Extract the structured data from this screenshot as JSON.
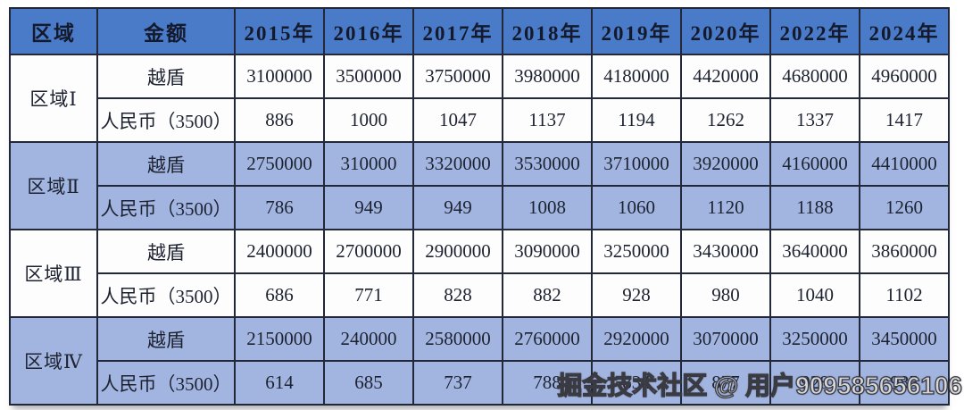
{
  "chart_data": {
    "type": "table",
    "columns": [
      "区域",
      "金额",
      "2015年",
      "2016年",
      "2017年",
      "2018年",
      "2019年",
      "2020年",
      "2022年",
      "2024年"
    ],
    "row_labels": {
      "dong": "越盾",
      "rmb": "人民币（3500）"
    },
    "regions": [
      {
        "name": "区域Ⅰ",
        "rows": [
          {
            "label": "越盾",
            "values": [
              "3100000",
              "3500000",
              "3750000",
              "3980000",
              "4180000",
              "4420000",
              "4680000",
              "4960000"
            ]
          },
          {
            "label": "人民币（3500）",
            "values": [
              "886",
              "1000",
              "1047",
              "1137",
              "1194",
              "1262",
              "1337",
              "1417"
            ]
          }
        ]
      },
      {
        "name": "区域Ⅱ",
        "rows": [
          {
            "label": "越盾",
            "values": [
              "2750000",
              "310000",
              "3320000",
              "3530000",
              "3710000",
              "3920000",
              "4160000",
              "4410000"
            ]
          },
          {
            "label": "人民币（3500）",
            "values": [
              "786",
              "949",
              "949",
              "1008",
              "1060",
              "1120",
              "1188",
              "1260"
            ]
          }
        ]
      },
      {
        "name": "区域Ⅲ",
        "rows": [
          {
            "label": "越盾",
            "values": [
              "2400000",
              "2700000",
              "2900000",
              "3090000",
              "3250000",
              "3430000",
              "3640000",
              "3860000"
            ]
          },
          {
            "label": "人民币（3500）",
            "values": [
              "686",
              "771",
              "828",
              "882",
              "928",
              "980",
              "1040",
              "1102"
            ]
          }
        ]
      },
      {
        "name": "区域Ⅳ",
        "rows": [
          {
            "label": "越盾",
            "values": [
              "2150000",
              "240000",
              "2580000",
              "2760000",
              "2920000",
              "3070000",
              "3250000",
              "3450000"
            ]
          },
          {
            "label": "人民币（3500）",
            "values": [
              "614",
              "685",
              "737",
              "788",
              "834",
              "877",
              "928",
              "985"
            ]
          }
        ]
      }
    ]
  },
  "watermark": {
    "text": "掘金技术社区 @ 用户909585656106"
  },
  "colors": {
    "header_bg": "#4a7bc9",
    "band_bg": "#a2b5e0",
    "white_bg": "#fdfdfe",
    "border": "#23273a",
    "text": "#1d2230",
    "watermark_fill": "#d6d6d8",
    "watermark_stroke": "#3a3b42"
  }
}
